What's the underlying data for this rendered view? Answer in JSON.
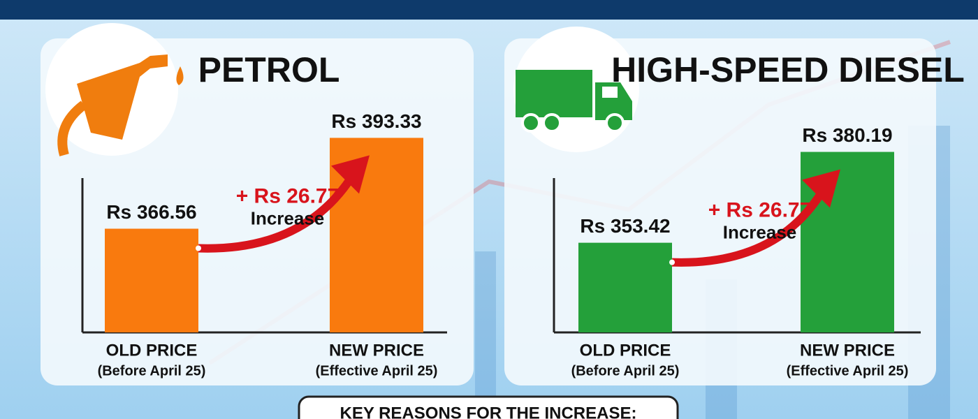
{
  "chart_data": [
    {
      "type": "bar",
      "title": "PETROL",
      "categories": [
        "OLD PRICE",
        "NEW PRICE"
      ],
      "category_notes": [
        "(Before April 25)",
        "(Effective April 25)"
      ],
      "values": [
        366.56,
        393.33
      ],
      "value_labels": [
        "Rs 366.56",
        "Rs 393.33"
      ],
      "annotation": {
        "text": "+ Rs 26.77",
        "note": "Increase"
      },
      "color": "#f97a0e",
      "ylim": [
        336,
        400
      ]
    },
    {
      "type": "bar",
      "title": "HIGH-SPEED DIESEL",
      "categories": [
        "OLD PRICE",
        "NEW PRICE"
      ],
      "category_notes": [
        "(Before April 25)",
        "(Effective April 25)"
      ],
      "values": [
        353.42,
        380.19
      ],
      "value_labels": [
        "Rs 353.42",
        "Rs 380.19"
      ],
      "annotation": {
        "text": "+ Rs 26.77",
        "note": "Increase"
      },
      "color": "#24a03a",
      "ylim": [
        327,
        391
      ]
    }
  ],
  "footer": {
    "heading": "KEY REASONS FOR THE INCREASE:"
  }
}
